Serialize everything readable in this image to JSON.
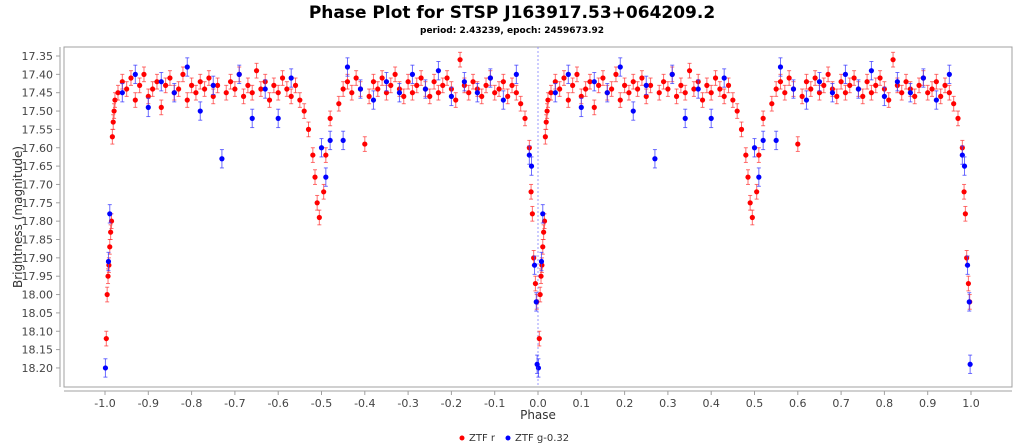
{
  "chart_data": {
    "type": "scatter",
    "title": "Phase Plot for STSP J163917.53+064209.2",
    "subtitle": "period: 2.43239, epoch: 2459673.92",
    "xlabel": "Phase",
    "ylabel": "Brightness (magnitude)",
    "xlim": [
      -1.1,
      1.1
    ],
    "ylim": [
      17.325,
      18.24
    ],
    "y_inverted": true,
    "grid": false,
    "legend_position": "bottom",
    "xticks": [
      "-1.0",
      "-0.9",
      "-0.8",
      "-0.7",
      "-0.6",
      "-0.5",
      "-0.4",
      "-0.3",
      "-0.2",
      "-0.1",
      "0.0",
      "0.1",
      "0.2",
      "0.3",
      "0.4",
      "0.5",
      "0.6",
      "0.7",
      "0.8",
      "0.9",
      "1.0"
    ],
    "yticks": [
      "17.35",
      "17.40",
      "17.45",
      "17.50",
      "17.55",
      "17.60",
      "17.65",
      "17.70",
      "17.75",
      "17.80",
      "17.85",
      "17.90",
      "17.95",
      "18.00",
      "18.05",
      "18.10",
      "18.15",
      "18.20"
    ],
    "phase_repeat": "points shown at phase and phase+1",
    "series": [
      {
        "name": "ZTF r",
        "color": "#ff0000",
        "err": 0.02,
        "points": [
          [
            -0.997,
            18.12
          ],
          [
            -0.995,
            18.0
          ],
          [
            -0.993,
            17.95
          ],
          [
            -0.991,
            17.92
          ],
          [
            -0.989,
            17.87
          ],
          [
            -0.987,
            17.83
          ],
          [
            -0.985,
            17.8
          ],
          [
            -0.983,
            17.57
          ],
          [
            -0.981,
            17.53
          ],
          [
            -0.979,
            17.5
          ],
          [
            -0.977,
            17.47
          ],
          [
            -0.97,
            17.45
          ],
          [
            -0.96,
            17.42
          ],
          [
            -0.95,
            17.44
          ],
          [
            -0.94,
            17.41
          ],
          [
            -0.93,
            17.47
          ],
          [
            -0.92,
            17.43
          ],
          [
            -0.91,
            17.4
          ],
          [
            -0.9,
            17.46
          ],
          [
            -0.89,
            17.44
          ],
          [
            -0.88,
            17.42
          ],
          [
            -0.87,
            17.49
          ],
          [
            -0.86,
            17.43
          ],
          [
            -0.85,
            17.41
          ],
          [
            -0.84,
            17.45
          ],
          [
            -0.83,
            17.44
          ],
          [
            -0.82,
            17.4
          ],
          [
            -0.81,
            17.47
          ],
          [
            -0.8,
            17.43
          ],
          [
            -0.79,
            17.45
          ],
          [
            -0.78,
            17.42
          ],
          [
            -0.77,
            17.44
          ],
          [
            -0.76,
            17.41
          ],
          [
            -0.75,
            17.46
          ],
          [
            -0.74,
            17.43
          ],
          [
            -0.72,
            17.45
          ],
          [
            -0.71,
            17.42
          ],
          [
            -0.7,
            17.44
          ],
          [
            -0.69,
            17.4
          ],
          [
            -0.68,
            17.46
          ],
          [
            -0.67,
            17.43
          ],
          [
            -0.66,
            17.45
          ],
          [
            -0.65,
            17.39
          ],
          [
            -0.64,
            17.44
          ],
          [
            -0.63,
            17.42
          ],
          [
            -0.62,
            17.47
          ],
          [
            -0.61,
            17.43
          ],
          [
            -0.6,
            17.45
          ],
          [
            -0.59,
            17.41
          ],
          [
            -0.58,
            17.44
          ],
          [
            -0.57,
            17.46
          ],
          [
            -0.56,
            17.43
          ],
          [
            -0.55,
            17.47
          ],
          [
            -0.54,
            17.5
          ],
          [
            -0.53,
            17.55
          ],
          [
            -0.52,
            17.62
          ],
          [
            -0.515,
            17.68
          ],
          [
            -0.51,
            17.75
          ],
          [
            -0.505,
            17.79
          ],
          [
            -0.495,
            17.72
          ],
          [
            -0.49,
            17.62
          ],
          [
            -0.48,
            17.52
          ],
          [
            -0.46,
            17.48
          ],
          [
            -0.45,
            17.44
          ],
          [
            -0.44,
            17.42
          ],
          [
            -0.43,
            17.45
          ],
          [
            -0.42,
            17.41
          ],
          [
            -0.41,
            17.44
          ],
          [
            -0.4,
            17.59
          ],
          [
            -0.39,
            17.46
          ],
          [
            -0.38,
            17.42
          ],
          [
            -0.37,
            17.44
          ],
          [
            -0.36,
            17.41
          ],
          [
            -0.35,
            17.45
          ],
          [
            -0.34,
            17.43
          ],
          [
            -0.33,
            17.4
          ],
          [
            -0.32,
            17.44
          ],
          [
            -0.31,
            17.46
          ],
          [
            -0.3,
            17.42
          ],
          [
            -0.29,
            17.45
          ],
          [
            -0.28,
            17.43
          ],
          [
            -0.27,
            17.41
          ],
          [
            -0.26,
            17.44
          ],
          [
            -0.25,
            17.46
          ],
          [
            -0.24,
            17.42
          ],
          [
            -0.23,
            17.45
          ],
          [
            -0.22,
            17.43
          ],
          [
            -0.21,
            17.41
          ],
          [
            -0.2,
            17.44
          ],
          [
            -0.19,
            17.47
          ],
          [
            -0.18,
            17.36
          ],
          [
            -0.17,
            17.43
          ],
          [
            -0.16,
            17.45
          ],
          [
            -0.15,
            17.42
          ],
          [
            -0.14,
            17.44
          ],
          [
            -0.13,
            17.46
          ],
          [
            -0.12,
            17.43
          ],
          [
            -0.11,
            17.41
          ],
          [
            -0.1,
            17.45
          ],
          [
            -0.09,
            17.44
          ],
          [
            -0.08,
            17.42
          ],
          [
            -0.07,
            17.46
          ],
          [
            -0.06,
            17.43
          ],
          [
            -0.05,
            17.45
          ],
          [
            -0.04,
            17.48
          ],
          [
            -0.03,
            17.52
          ],
          [
            -0.02,
            17.6
          ],
          [
            -0.016,
            17.72
          ],
          [
            -0.013,
            17.78
          ],
          [
            -0.01,
            17.9
          ],
          [
            -0.006,
            17.97
          ],
          [
            -0.003,
            18.02
          ]
        ]
      },
      {
        "name": "ZTF g-0.32",
        "color": "#0000ff",
        "err": 0.025,
        "points": [
          [
            -0.999,
            18.2
          ],
          [
            -0.992,
            17.91
          ],
          [
            -0.989,
            17.78
          ],
          [
            -0.96,
            17.45
          ],
          [
            -0.93,
            17.4
          ],
          [
            -0.9,
            17.49
          ],
          [
            -0.87,
            17.42
          ],
          [
            -0.84,
            17.45
          ],
          [
            -0.81,
            17.38
          ],
          [
            -0.78,
            17.5
          ],
          [
            -0.75,
            17.43
          ],
          [
            -0.73,
            17.63
          ],
          [
            -0.69,
            17.4
          ],
          [
            -0.66,
            17.52
          ],
          [
            -0.63,
            17.44
          ],
          [
            -0.6,
            17.52
          ],
          [
            -0.57,
            17.41
          ],
          [
            -0.5,
            17.6
          ],
          [
            -0.49,
            17.68
          ],
          [
            -0.48,
            17.58
          ],
          [
            -0.45,
            17.58
          ],
          [
            -0.44,
            17.38
          ],
          [
            -0.41,
            17.44
          ],
          [
            -0.38,
            17.47
          ],
          [
            -0.35,
            17.42
          ],
          [
            -0.32,
            17.45
          ],
          [
            -0.29,
            17.4
          ],
          [
            -0.26,
            17.44
          ],
          [
            -0.23,
            17.39
          ],
          [
            -0.2,
            17.46
          ],
          [
            -0.17,
            17.42
          ],
          [
            -0.14,
            17.45
          ],
          [
            -0.11,
            17.41
          ],
          [
            -0.08,
            17.47
          ],
          [
            -0.05,
            17.4
          ],
          [
            -0.02,
            17.62
          ],
          [
            -0.015,
            17.65
          ],
          [
            -0.008,
            17.92
          ],
          [
            -0.004,
            18.02
          ],
          [
            -0.002,
            18.19
          ]
        ]
      }
    ]
  }
}
